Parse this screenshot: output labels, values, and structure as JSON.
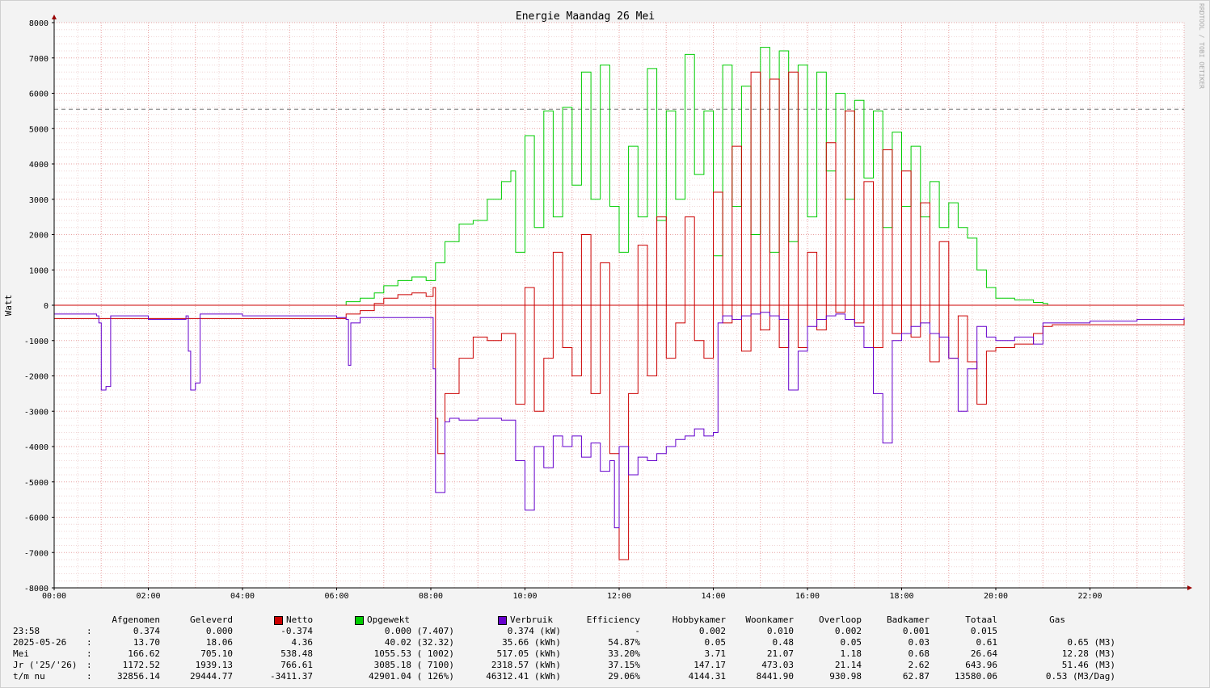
{
  "watermark": "RRDTOOL / TOBI OETIKER",
  "chart_data": {
    "type": "line",
    "title": "Energie Maandag   26 Mei",
    "ylabel": "Watt",
    "xlabel": "",
    "xlim_hours": [
      0,
      24
    ],
    "ylim": [
      -8000,
      8000
    ],
    "grid": true,
    "x_ticks": [
      "00:00",
      "02:00",
      "04:00",
      "06:00",
      "08:00",
      "10:00",
      "12:00",
      "14:00",
      "16:00",
      "18:00",
      "20:00",
      "22:00"
    ],
    "y_ticks": [
      8000,
      7000,
      6000,
      5000,
      4000,
      3000,
      2000,
      1000,
      0,
      -1000,
      -2000,
      -3000,
      -4000,
      -5000,
      -6000,
      -7000,
      -8000
    ],
    "reference_line": 5550,
    "series": [
      {
        "name": "Opgewekt",
        "color": "#00cc00",
        "x": [
          0,
          5.9,
          6.2,
          6.5,
          6.8,
          7.0,
          7.3,
          7.6,
          7.9,
          8.1,
          8.3,
          8.6,
          8.9,
          9.2,
          9.5,
          9.7,
          9.8,
          10.0,
          10.2,
          10.4,
          10.6,
          10.8,
          11.0,
          11.2,
          11.4,
          11.6,
          11.8,
          12.0,
          12.2,
          12.4,
          12.6,
          12.8,
          13.0,
          13.2,
          13.4,
          13.6,
          13.8,
          14.0,
          14.2,
          14.4,
          14.6,
          14.8,
          15.0,
          15.2,
          15.4,
          15.6,
          15.8,
          16.0,
          16.2,
          16.4,
          16.6,
          16.8,
          17.0,
          17.2,
          17.4,
          17.6,
          17.8,
          18.0,
          18.2,
          18.4,
          18.6,
          18.8,
          19.0,
          19.2,
          19.4,
          19.6,
          19.8,
          20.0,
          20.4,
          20.8,
          21.0,
          21.1,
          24
        ],
        "y": [
          0,
          0,
          100,
          200,
          350,
          550,
          700,
          800,
          700,
          1200,
          1800,
          2300,
          2400,
          3000,
          3500,
          3800,
          1500,
          4800,
          2200,
          5500,
          2500,
          5600,
          3400,
          6600,
          3000,
          6800,
          2800,
          1500,
          4500,
          2500,
          6700,
          2400,
          5500,
          3000,
          7100,
          3700,
          5500,
          1400,
          6800,
          2800,
          6200,
          2000,
          7300,
          1500,
          7200,
          1800,
          6800,
          2500,
          6600,
          3800,
          6000,
          3000,
          5800,
          3600,
          5500,
          2200,
          4900,
          2800,
          4500,
          2500,
          3500,
          2200,
          2900,
          2200,
          1900,
          1000,
          500,
          200,
          150,
          80,
          50,
          0,
          0
        ]
      },
      {
        "name": "Netto",
        "color": "#cc0000",
        "x": [
          0,
          5.9,
          6.2,
          6.5,
          6.8,
          7.0,
          7.3,
          7.6,
          7.9,
          8.05,
          8.1,
          8.15,
          8.3,
          8.6,
          8.9,
          9.2,
          9.5,
          9.8,
          10.0,
          10.2,
          10.4,
          10.6,
          10.8,
          11.0,
          11.2,
          11.4,
          11.6,
          11.8,
          12.0,
          12.2,
          12.4,
          12.6,
          12.8,
          13.0,
          13.2,
          13.4,
          13.6,
          13.8,
          14.0,
          14.2,
          14.4,
          14.6,
          14.8,
          15.0,
          15.2,
          15.4,
          15.6,
          15.8,
          16.0,
          16.2,
          16.4,
          16.6,
          16.8,
          17.0,
          17.2,
          17.4,
          17.6,
          17.8,
          18.0,
          18.2,
          18.4,
          18.6,
          18.8,
          19.0,
          19.2,
          19.4,
          19.6,
          19.8,
          20.0,
          20.4,
          20.8,
          21.0,
          21.2,
          24
        ],
        "y": [
          -374,
          -374,
          -250,
          -150,
          50,
          200,
          300,
          350,
          250,
          500,
          -3200,
          -4200,
          -2500,
          -1500,
          -900,
          -1000,
          -800,
          -2800,
          500,
          -3000,
          -1500,
          1500,
          -1200,
          -2000,
          2000,
          -2500,
          1200,
          -4200,
          -7200,
          -2500,
          1700,
          -2000,
          2500,
          -1500,
          -500,
          2500,
          -1000,
          -1500,
          3200,
          -500,
          4500,
          -1300,
          6600,
          -700,
          6400,
          -1200,
          6600,
          -1200,
          1500,
          -700,
          4600,
          -200,
          5500,
          -500,
          3500,
          -1200,
          4400,
          -800,
          3800,
          -900,
          2900,
          -1600,
          1800,
          -1500,
          -300,
          -1600,
          -2800,
          -1300,
          -1200,
          -1100,
          -800,
          -600,
          -550,
          -374
        ]
      },
      {
        "name": "Verbruik",
        "color": "#6600cc",
        "x": [
          0,
          0.9,
          0.95,
          1.0,
          1.1,
          1.2,
          2.0,
          2.8,
          2.85,
          2.9,
          3.0,
          3.1,
          4.0,
          5.5,
          6.0,
          6.2,
          6.25,
          6.3,
          6.5,
          7.0,
          7.5,
          8.0,
          8.05,
          8.1,
          8.3,
          8.4,
          8.6,
          9.0,
          9.5,
          9.8,
          10.0,
          10.2,
          10.4,
          10.6,
          10.8,
          11.0,
          11.2,
          11.4,
          11.6,
          11.8,
          11.9,
          12.0,
          12.2,
          12.4,
          12.6,
          12.8,
          13.0,
          13.2,
          13.4,
          13.6,
          13.8,
          14.0,
          14.1,
          14.2,
          14.4,
          14.6,
          14.8,
          15.0,
          15.2,
          15.4,
          15.6,
          15.8,
          16.0,
          16.2,
          16.4,
          16.6,
          16.8,
          17.0,
          17.2,
          17.4,
          17.6,
          17.8,
          18.0,
          18.2,
          18.4,
          18.6,
          18.8,
          19.0,
          19.2,
          19.4,
          19.6,
          19.8,
          20.0,
          20.4,
          20.8,
          21.0,
          21.2,
          22.0,
          23.0,
          24
        ],
        "y": [
          -250,
          -300,
          -500,
          -2400,
          -2300,
          -300,
          -400,
          -300,
          -1300,
          -2400,
          -2200,
          -250,
          -300,
          -300,
          -350,
          -400,
          -1700,
          -500,
          -350,
          -350,
          -350,
          -350,
          -1800,
          -5300,
          -3300,
          -3200,
          -3250,
          -3200,
          -3250,
          -4400,
          -5800,
          -4000,
          -4600,
          -3700,
          -4000,
          -3700,
          -4300,
          -3900,
          -4700,
          -4400,
          -6300,
          -4000,
          -4800,
          -4300,
          -4400,
          -4200,
          -4000,
          -3800,
          -3700,
          -3500,
          -3700,
          -3600,
          -500,
          -300,
          -400,
          -300,
          -250,
          -200,
          -300,
          -400,
          -2400,
          -1300,
          -600,
          -400,
          -300,
          -250,
          -400,
          -600,
          -1200,
          -2500,
          -3900,
          -1000,
          -800,
          -600,
          -500,
          -800,
          -900,
          -1500,
          -3000,
          -1800,
          -600,
          -900,
          -1000,
          -900,
          -1100,
          -500,
          -500,
          -450,
          -400,
          -350
        ]
      }
    ]
  },
  "stats": {
    "headers": [
      "Afgenomen",
      "Geleverd",
      "Netto",
      "Opgewekt",
      "Verbruik",
      "Efficiency",
      "Hobbykamer",
      "Woonkamer",
      "Overloop",
      "Badkamer",
      "Totaal",
      "Gas"
    ],
    "rows": [
      {
        "label": "23:58",
        "sep": ":",
        "afgenomen": "0.374",
        "geleverd": "0.000",
        "netto": "-0.374",
        "opgewekt": "0.000 (7.407)",
        "verbruik": "0.374 (kW)",
        "efficiency": "-",
        "hobbykamer": "0.002",
        "woonkamer": "0.010",
        "overloop": "0.002",
        "badkamer": "0.001",
        "totaal": "0.015",
        "gas": ""
      },
      {
        "label": "2025-05-26",
        "sep": ":",
        "afgenomen": "13.70",
        "geleverd": "18.06",
        "netto": "4.36",
        "opgewekt": "40.02 (32.32)",
        "verbruik": "35.66 (kWh)",
        "efficiency": "54.87%",
        "hobbykamer": "0.05",
        "woonkamer": "0.48",
        "overloop": "0.05",
        "badkamer": "0.03",
        "totaal": "0.61",
        "gas": "0.65 (M3)"
      },
      {
        "label": "Mei",
        "sep": ":",
        "afgenomen": "166.62",
        "geleverd": "705.10",
        "netto": "538.48",
        "opgewekt": "1055.53 ( 1002)",
        "verbruik": "517.05 (kWh)",
        "efficiency": "33.20%",
        "hobbykamer": "3.71",
        "woonkamer": "21.07",
        "overloop": "1.18",
        "badkamer": "0.68",
        "totaal": "26.64",
        "gas": "12.28 (M3)"
      },
      {
        "label": "Jr ('25/'26)",
        "sep": ":",
        "afgenomen": "1172.52",
        "geleverd": "1939.13",
        "netto": "766.61",
        "opgewekt": "3085.18 ( 7100)",
        "verbruik": "2318.57 (kWh)",
        "efficiency": "37.15%",
        "hobbykamer": "147.17",
        "woonkamer": "473.03",
        "overloop": "21.14",
        "badkamer": "2.62",
        "totaal": "643.96",
        "gas": "51.46 (M3)"
      },
      {
        "label": "t/m nu",
        "sep": ":",
        "afgenomen": "32856.14",
        "geleverd": "29444.77",
        "netto": "-3411.37",
        "opgewekt": "42901.04 ( 126%)",
        "verbruik": "46312.41 (kWh)",
        "efficiency": "29.06%",
        "hobbykamer": "4144.31",
        "woonkamer": "8441.90",
        "overloop": "930.98",
        "badkamer": "62.87",
        "totaal": "13580.06",
        "gas": "0.53 (M3/Dag)"
      }
    ]
  }
}
